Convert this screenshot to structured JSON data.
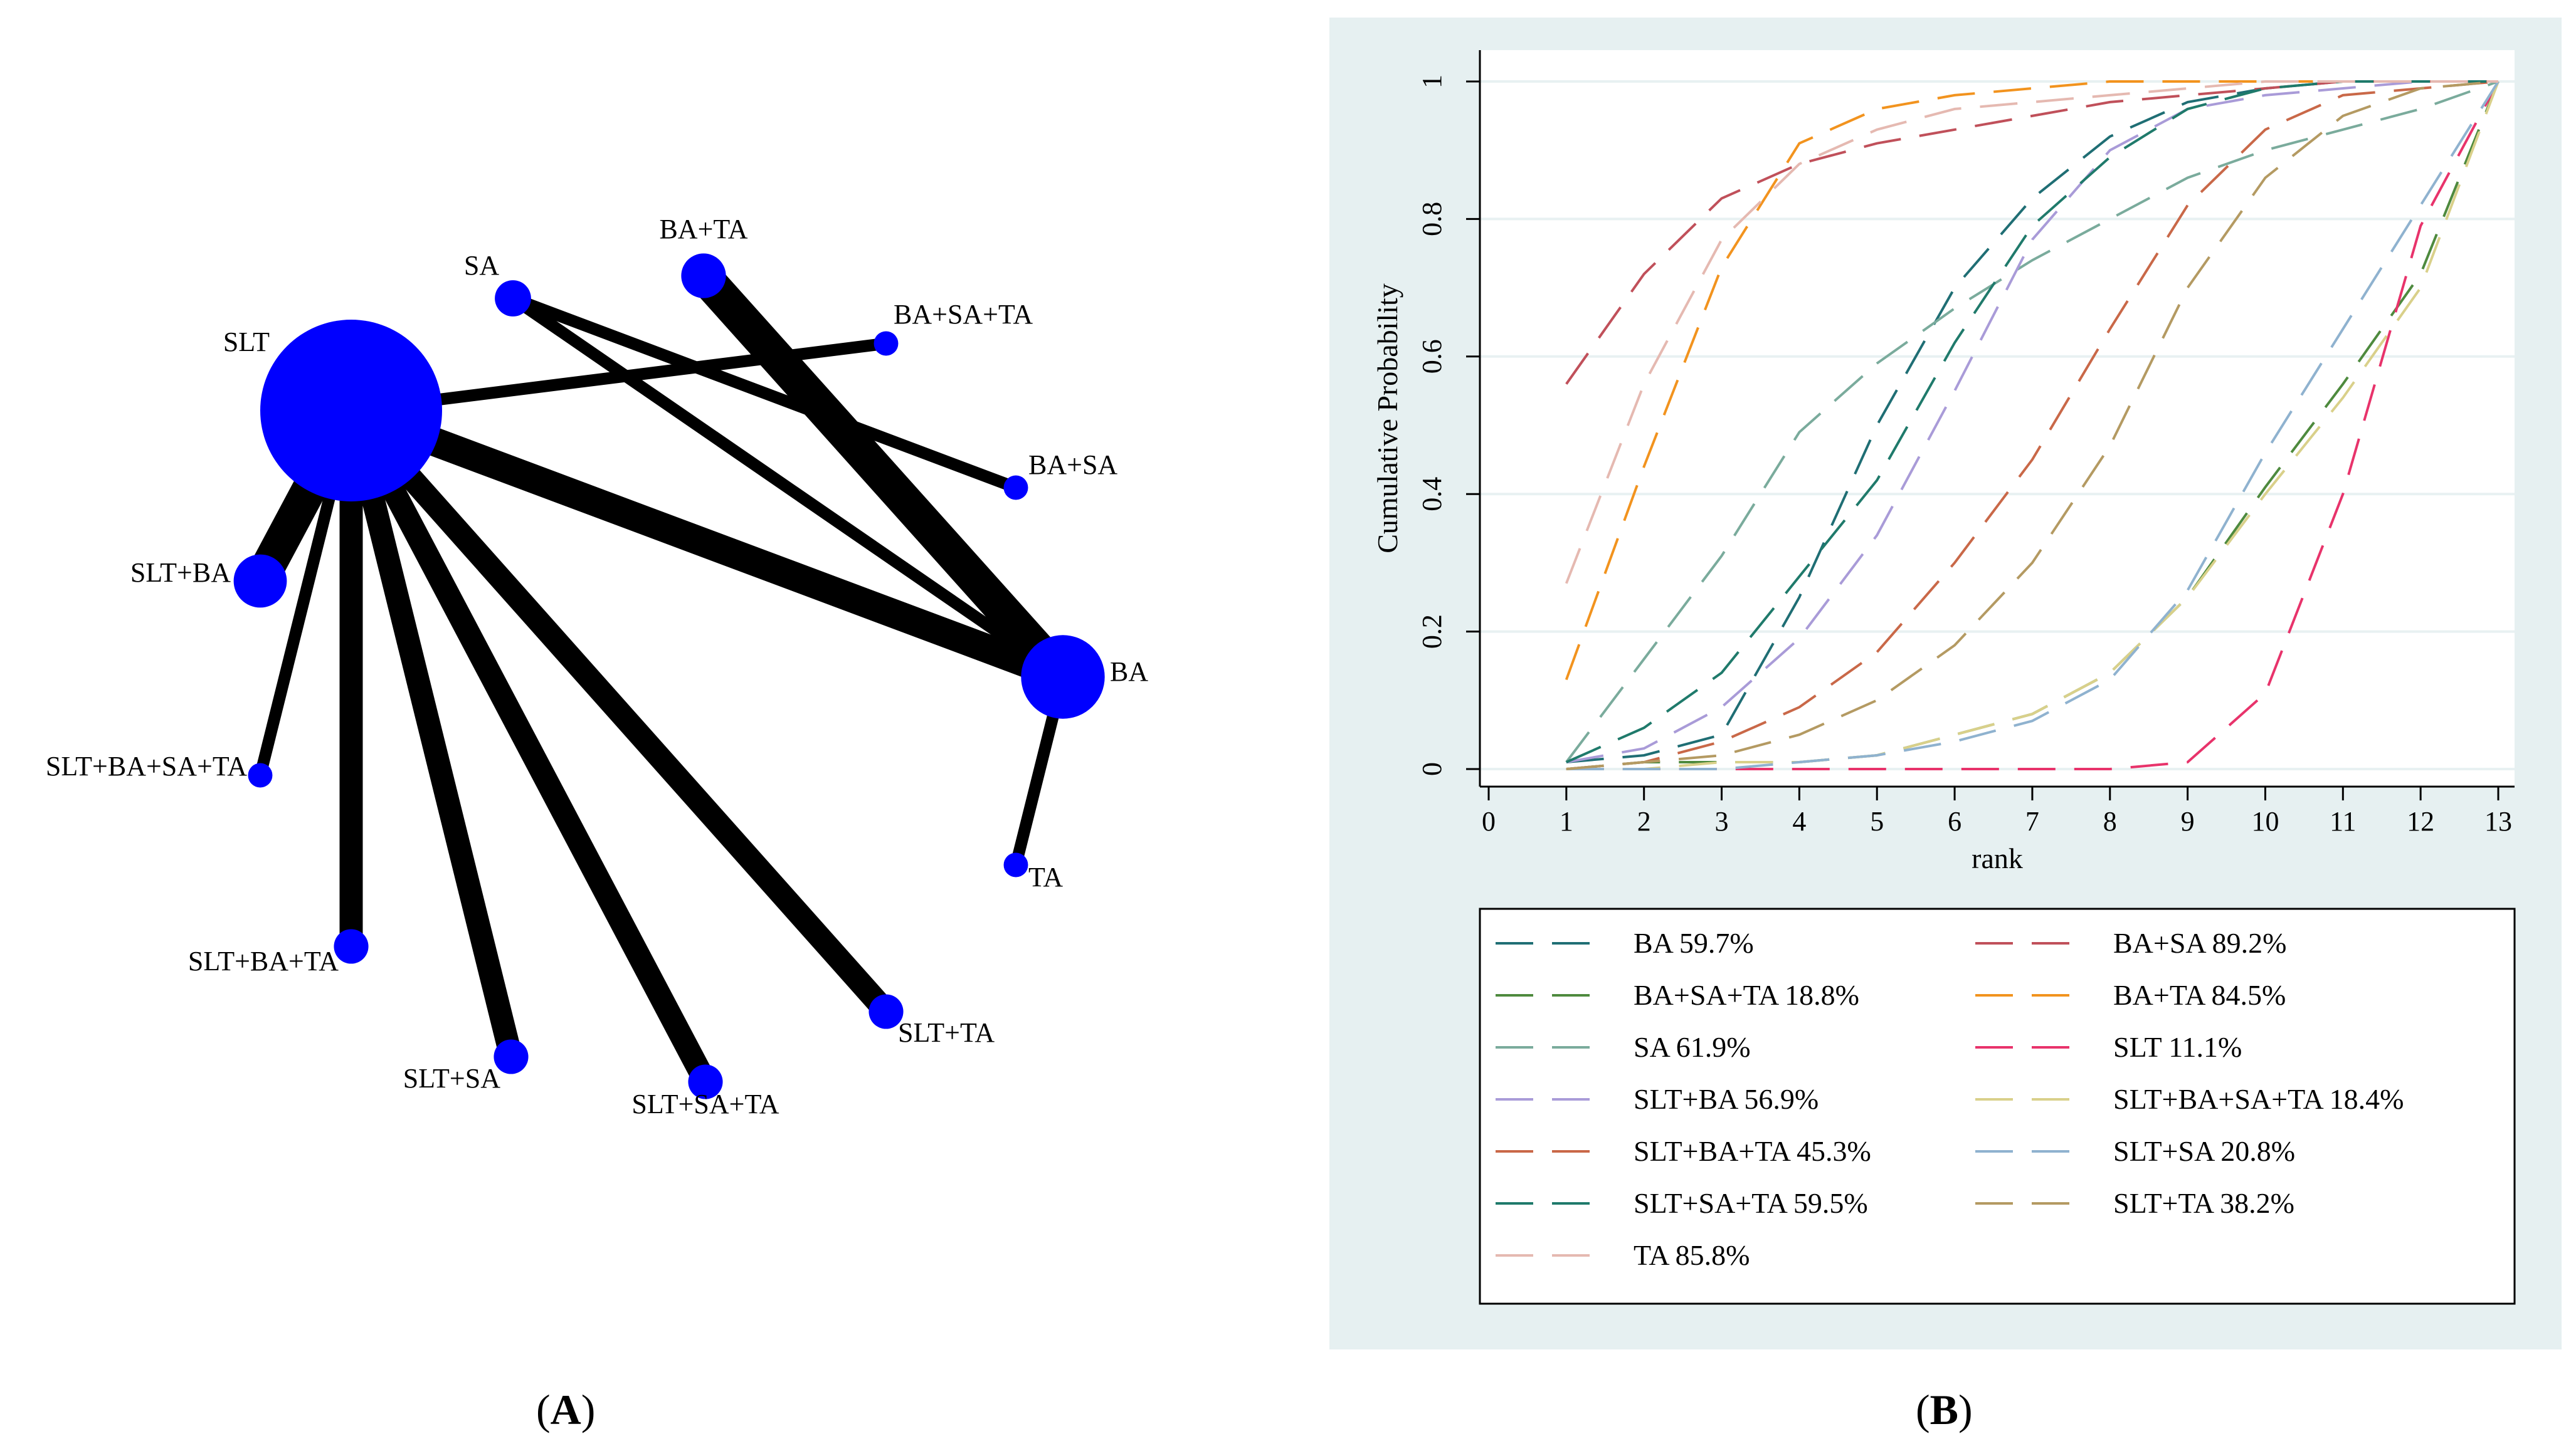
{
  "panels": {
    "a_label_open": "(",
    "a_label_letter": "A",
    "a_label_close": ")",
    "b_label_open": "(",
    "b_label_letter": "B",
    "b_label_close": ")"
  },
  "chart_data": [
    {
      "type": "network",
      "nodes": [
        {
          "id": "SLT",
          "label": "SLT",
          "size": 1.0
        },
        {
          "id": "SA",
          "label": "SA",
          "size": 0.14
        },
        {
          "id": "BA+TA",
          "label": "BA+TA",
          "size": 0.19
        },
        {
          "id": "BA+SA+TA",
          "label": "BA+SA+TA",
          "size": 0.07
        },
        {
          "id": "BA+SA",
          "label": "BA+SA",
          "size": 0.07
        },
        {
          "id": "SLT+BA",
          "label": "SLT+BA",
          "size": 0.24
        },
        {
          "id": "BA",
          "label": "BA",
          "size": 0.42
        },
        {
          "id": "SLT+BA+SA+TA",
          "label": "SLT+BA+SA+TA",
          "size": 0.07
        },
        {
          "id": "TA",
          "label": "TA",
          "size": 0.07
        },
        {
          "id": "SLT+BA+TA",
          "label": "SLT+BA+TA",
          "size": 0.13
        },
        {
          "id": "SLT+SA",
          "label": "SLT+SA",
          "size": 0.13
        },
        {
          "id": "SLT+SA+TA",
          "label": "SLT+SA+TA",
          "size": 0.13
        },
        {
          "id": "SLT+TA",
          "label": "SLT+TA",
          "size": 0.13
        }
      ],
      "edges": [
        {
          "from": "SLT",
          "to": "BA+SA+TA",
          "weight": 1
        },
        {
          "from": "SLT",
          "to": "BA",
          "weight": 4
        },
        {
          "from": "SLT",
          "to": "SLT+BA",
          "weight": 5
        },
        {
          "from": "SLT",
          "to": "SLT+BA+SA+TA",
          "weight": 1
        },
        {
          "from": "SLT",
          "to": "SLT+BA+TA",
          "weight": 3
        },
        {
          "from": "SLT",
          "to": "SLT+SA",
          "weight": 3
        },
        {
          "from": "SLT",
          "to": "SLT+SA+TA",
          "weight": 3
        },
        {
          "from": "SLT",
          "to": "SLT+TA",
          "weight": 3
        },
        {
          "from": "SA",
          "to": "BA+SA",
          "weight": 1
        },
        {
          "from": "SA",
          "to": "BA",
          "weight": 1
        },
        {
          "from": "BA+TA",
          "to": "BA",
          "weight": 5
        },
        {
          "from": "BA",
          "to": "TA",
          "weight": 1
        }
      ]
    },
    {
      "type": "line",
      "xlabel": "rank",
      "ylabel": "Cumulative Probability",
      "xlim": [
        0,
        13
      ],
      "ylim": [
        0,
        1
      ],
      "x_ticks": [
        "0",
        "1",
        "2",
        "3",
        "4",
        "5",
        "6",
        "7",
        "8",
        "9",
        "10",
        "11",
        "12",
        "13"
      ],
      "y_ticks": [
        "0",
        "0.2",
        "0.4",
        "0.6",
        "0.8",
        "1"
      ],
      "grid": true,
      "legend_position": "bottom",
      "x": [
        1,
        2,
        3,
        4,
        5,
        6,
        7,
        8,
        9,
        10,
        11,
        12,
        13
      ],
      "series": [
        {
          "name": "BA 59.7%",
          "color": "#1f6e74",
          "values": [
            0.01,
            0.02,
            0.05,
            0.25,
            0.5,
            0.7,
            0.83,
            0.92,
            0.97,
            0.99,
            1.0,
            1.0,
            1.0
          ]
        },
        {
          "name": "BA+SA 89.2%",
          "color": "#c0505a",
          "values": [
            0.56,
            0.72,
            0.83,
            0.88,
            0.91,
            0.93,
            0.95,
            0.97,
            0.98,
            0.99,
            1.0,
            1.0,
            1.0
          ]
        },
        {
          "name": "BA+SA+TA 18.8%",
          "color": "#4e8a3e",
          "values": [
            0.0,
            0.01,
            0.01,
            0.01,
            0.02,
            0.05,
            0.08,
            0.14,
            0.25,
            0.41,
            0.56,
            0.72,
            1.0
          ]
        },
        {
          "name": "BA+TA 84.5%",
          "color": "#f2931e",
          "values": [
            0.13,
            0.44,
            0.73,
            0.91,
            0.96,
            0.98,
            0.99,
            1.0,
            1.0,
            1.0,
            1.0,
            1.0,
            1.0
          ]
        },
        {
          "name": "SA 61.9%",
          "color": "#7aab9c",
          "values": [
            0.01,
            0.16,
            0.31,
            0.49,
            0.59,
            0.67,
            0.74,
            0.8,
            0.86,
            0.9,
            0.93,
            0.96,
            1.0
          ]
        },
        {
          "name": "SLT 11.1%",
          "color": "#e8336b",
          "values": [
            0.0,
            0.0,
            0.0,
            0.0,
            0.0,
            0.0,
            0.0,
            0.0,
            0.01,
            0.11,
            0.4,
            0.79,
            1.0
          ]
        },
        {
          "name": "SLT+BA 56.9%",
          "color": "#a99bd8",
          "values": [
            0.01,
            0.03,
            0.09,
            0.19,
            0.34,
            0.55,
            0.77,
            0.9,
            0.96,
            0.98,
            0.99,
            1.0,
            1.0
          ]
        },
        {
          "name": "SLT+BA+SA+TA 18.4%",
          "color": "#d9d08a",
          "values": [
            0.0,
            0.0,
            0.01,
            0.01,
            0.02,
            0.05,
            0.08,
            0.14,
            0.25,
            0.4,
            0.54,
            0.7,
            1.0
          ]
        },
        {
          "name": "SLT+BA+TA 45.3%",
          "color": "#c96848",
          "values": [
            0.0,
            0.01,
            0.04,
            0.09,
            0.17,
            0.3,
            0.45,
            0.64,
            0.82,
            0.93,
            0.98,
            0.99,
            1.0
          ]
        },
        {
          "name": "SLT+SA 20.8%",
          "color": "#8fb2cf",
          "values": [
            0.0,
            0.0,
            0.0,
            0.01,
            0.02,
            0.04,
            0.07,
            0.13,
            0.26,
            0.46,
            0.64,
            0.82,
            1.0
          ]
        },
        {
          "name": "SLT+SA+TA 59.5%",
          "color": "#1f7a6b",
          "values": [
            0.01,
            0.06,
            0.14,
            0.28,
            0.42,
            0.62,
            0.79,
            0.89,
            0.96,
            0.99,
            1.0,
            1.0,
            1.0
          ]
        },
        {
          "name": "SLT+TA 38.2%",
          "color": "#b49a62",
          "values": [
            0.0,
            0.01,
            0.02,
            0.05,
            0.1,
            0.18,
            0.3,
            0.47,
            0.7,
            0.86,
            0.95,
            0.99,
            1.0
          ]
        },
        {
          "name": "TA 85.8%",
          "color": "#e5b9b1",
          "values": [
            0.27,
            0.56,
            0.77,
            0.88,
            0.93,
            0.96,
            0.97,
            0.98,
            0.99,
            1.0,
            1.0,
            1.0,
            1.0
          ]
        }
      ]
    }
  ]
}
